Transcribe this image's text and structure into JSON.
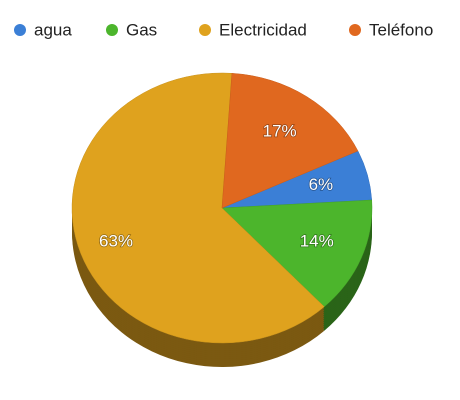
{
  "chart_data": {
    "type": "pie",
    "categories": [
      "agua",
      "Gas",
      "Electricidad",
      "Teléfono"
    ],
    "values": [
      6,
      14,
      63,
      17
    ],
    "value_labels": [
      "6%",
      "14%",
      "63%",
      "17%"
    ],
    "colors": [
      "#3b7fd6",
      "#4cb52c",
      "#dfa21e",
      "#e0681f"
    ],
    "legend": "top"
  }
}
